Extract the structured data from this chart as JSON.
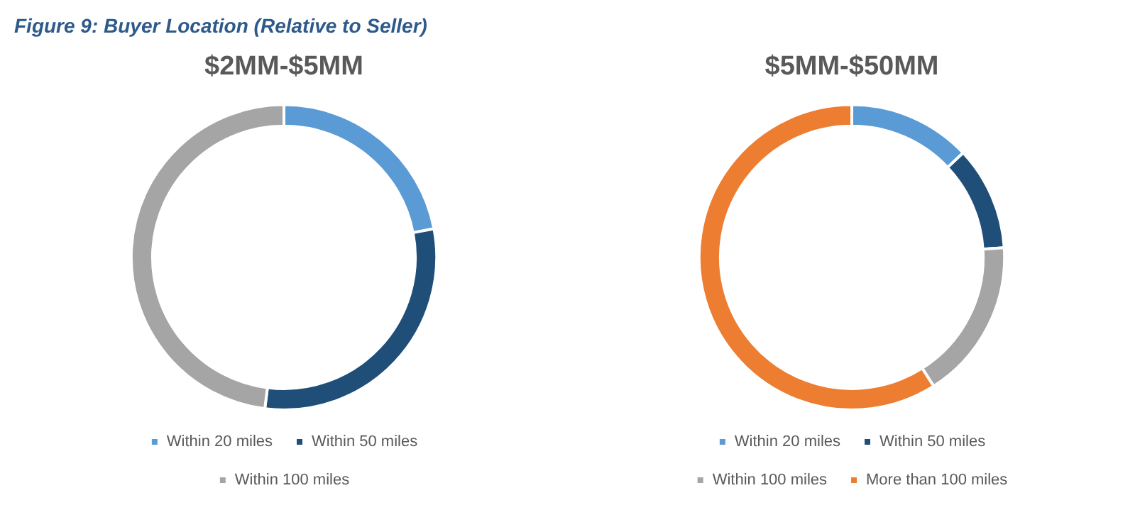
{
  "chart_data": [
    {
      "type": "donut",
      "annotations": [
        "Figure 9: Buyer Location (Relative to Seller)"
      ],
      "title": "$2MM-$5MM",
      "categories": [
        "Within 20 miles",
        "Within 50 miles",
        "Within 100 miles"
      ],
      "values": [
        22,
        30,
        48
      ],
      "colors": [
        "#5b9bd5",
        "#1f4e79",
        "#a5a5a5"
      ],
      "legend": "bottom"
    },
    {
      "type": "donut",
      "title": "$5MM-$50MM",
      "categories": [
        "Within 20 miles",
        "Within 50 miles",
        "Within 100 miles",
        "More than 100 miles"
      ],
      "values": [
        13,
        11,
        17,
        59
      ],
      "colors": [
        "#5b9bd5",
        "#1f4e79",
        "#a5a5a5",
        "#ed7d31"
      ],
      "legend": "bottom"
    }
  ]
}
